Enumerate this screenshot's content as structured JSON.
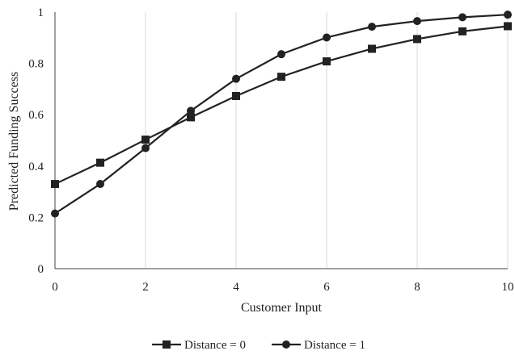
{
  "chart_data": {
    "type": "line",
    "title": "",
    "xlabel": "Customer Input",
    "ylabel": "Predicted Funding Success",
    "xlim": [
      0,
      10
    ],
    "ylim": [
      0,
      1
    ],
    "x_ticks": [
      0,
      2,
      4,
      6,
      8,
      10
    ],
    "y_ticks": [
      0,
      0.2,
      0.4,
      0.6,
      0.8,
      1
    ],
    "x_tick_labels": [
      "0",
      "2",
      "4",
      "6",
      "8",
      "10"
    ],
    "y_tick_labels": [
      "0",
      "0.2",
      "0.4",
      "0.6",
      "0.8",
      "1"
    ],
    "grid": "vertical",
    "legend_position": "bottom",
    "x": [
      0,
      1,
      2,
      3,
      4,
      5,
      6,
      7,
      8,
      9,
      10
    ],
    "series": [
      {
        "name": "Distance = 0",
        "marker": "square",
        "color": "#222222",
        "values": [
          0.33,
          0.413,
          0.503,
          0.59,
          0.673,
          0.748,
          0.808,
          0.857,
          0.895,
          0.925,
          0.945
        ]
      },
      {
        "name": "Distance = 1",
        "marker": "circle",
        "color": "#222222",
        "values": [
          0.215,
          0.33,
          0.47,
          0.615,
          0.74,
          0.836,
          0.901,
          0.943,
          0.965,
          0.98,
          0.99
        ]
      }
    ]
  },
  "colors": {
    "line": "#222222",
    "grid": "#d9d9d9",
    "background": "#ffffff"
  }
}
